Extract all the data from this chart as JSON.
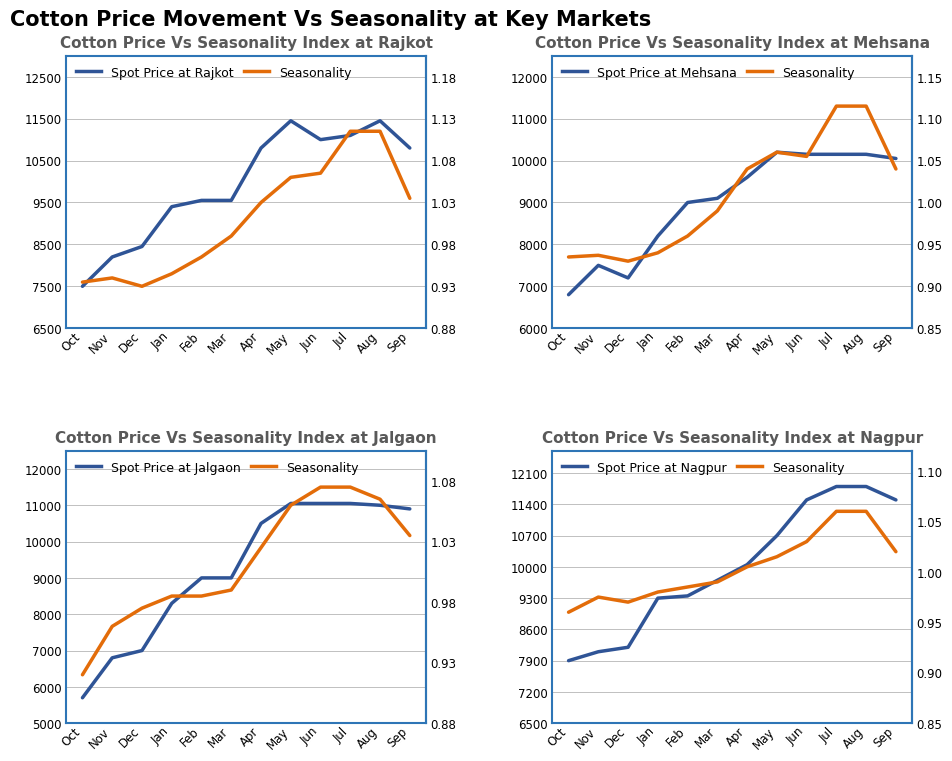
{
  "title": "Cotton Price Movement Vs Seasonality at Key Markets",
  "title_fontsize": 15,
  "title_fontweight": "bold",
  "months": [
    "Oct",
    "Nov",
    "Dec",
    "Jan",
    "Feb",
    "Mar",
    "Apr",
    "May",
    "Jun",
    "Jul",
    "Aug",
    "Sep"
  ],
  "subplots": [
    {
      "title": "Cotton Price Vs Seasonality Index at Rajkot",
      "price_label": "Spot Price at Rajkot",
      "price_data": [
        7500,
        8200,
        8450,
        9400,
        9550,
        9550,
        10800,
        11450,
        11000,
        11100,
        11450,
        10800
      ],
      "season_data": [
        0.935,
        0.94,
        0.93,
        0.945,
        0.965,
        0.99,
        1.03,
        1.06,
        1.065,
        1.115,
        1.115,
        1.035
      ],
      "price_ylim": [
        6500,
        13000
      ],
      "price_yticks": [
        6500,
        7500,
        8500,
        9500,
        10500,
        11500,
        12500
      ],
      "season_ylim": [
        0.88,
        1.205
      ],
      "season_yticks": [
        0.88,
        0.93,
        0.98,
        1.03,
        1.08,
        1.13,
        1.18
      ]
    },
    {
      "title": "Cotton Price Vs Seasonality Index at Mehsana",
      "price_label": "Spot Price at Mehsana",
      "price_data": [
        6800,
        7500,
        7200,
        8200,
        9000,
        9100,
        9600,
        10200,
        10150,
        10150,
        10150,
        10050
      ],
      "season_data": [
        0.935,
        0.937,
        0.93,
        0.94,
        0.96,
        0.99,
        1.04,
        1.06,
        1.055,
        1.115,
        1.115,
        1.04
      ],
      "price_ylim": [
        6000,
        12500
      ],
      "price_yticks": [
        6000,
        7000,
        8000,
        9000,
        10000,
        11000,
        12000
      ],
      "season_ylim": [
        0.85,
        1.175
      ],
      "season_yticks": [
        0.85,
        0.9,
        0.95,
        1.0,
        1.05,
        1.1,
        1.15
      ]
    },
    {
      "title": "Cotton Price Vs Seasonality Index at Jalgaon",
      "price_label": "Spot Price at Jalgaon",
      "price_data": [
        5700,
        6800,
        7000,
        8300,
        9000,
        9000,
        10500,
        11050,
        11050,
        11050,
        11000,
        10900
      ],
      "season_data": [
        0.92,
        0.96,
        0.975,
        0.985,
        0.985,
        0.99,
        1.025,
        1.06,
        1.075,
        1.075,
        1.065,
        1.035
      ],
      "price_ylim": [
        5000,
        12500
      ],
      "price_yticks": [
        5000,
        6000,
        7000,
        8000,
        9000,
        10000,
        11000,
        12000
      ],
      "season_ylim": [
        0.88,
        1.105
      ],
      "season_yticks": [
        0.88,
        0.93,
        0.98,
        1.03,
        1.08
      ]
    },
    {
      "title": "Cotton Price Vs Seasonality Index at Nagpur",
      "price_label": "Spot Price at Nagpur",
      "price_data": [
        7900,
        8100,
        8200,
        9300,
        9350,
        9700,
        10050,
        10700,
        11500,
        11800,
        11800,
        11500
      ],
      "season_data": [
        0.96,
        0.975,
        0.97,
        0.98,
        0.985,
        0.99,
        1.005,
        1.015,
        1.03,
        1.06,
        1.06,
        1.02
      ],
      "price_ylim": [
        6500,
        12600
      ],
      "price_yticks": [
        6500,
        7200,
        7900,
        8600,
        9300,
        10000,
        10700,
        11400,
        12100
      ],
      "season_ylim": [
        0.85,
        1.12
      ],
      "season_yticks": [
        0.85,
        0.9,
        0.95,
        1.0,
        1.05,
        1.1
      ]
    }
  ],
  "price_color": "#2F5496",
  "season_color": "#E36C09",
  "line_width": 2.5,
  "subplot_title_fontsize": 11,
  "subplot_title_fontweight": "bold",
  "subplot_title_color": "#595959",
  "legend_fontsize": 9,
  "tick_fontsize": 8.5,
  "grid_color": "#C0C0C0",
  "border_color": "#2E75B6",
  "background_color": "#FFFFFF"
}
